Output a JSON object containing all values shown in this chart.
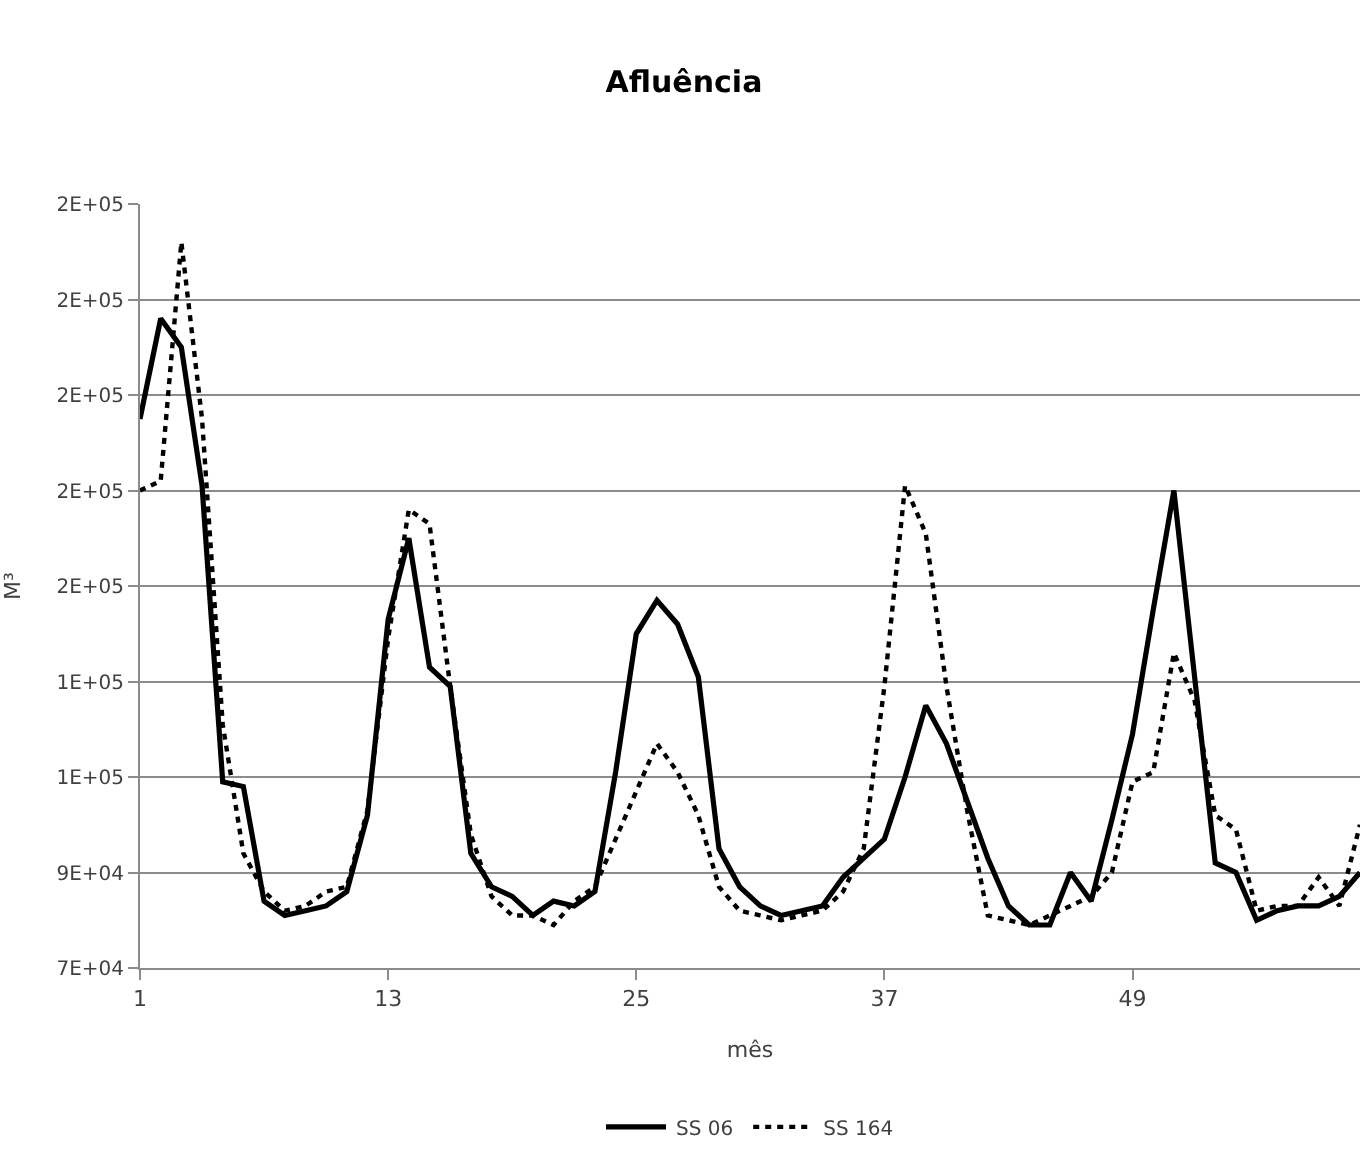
{
  "chart_data": {
    "type": "line",
    "title": "Afluência",
    "xlabel": "mês",
    "ylabel": "M³",
    "x": [
      1,
      2,
      3,
      4,
      5,
      6,
      7,
      8,
      9,
      10,
      11,
      12,
      13,
      14,
      15,
      16,
      17,
      18,
      19,
      20,
      21,
      22,
      23,
      24,
      25,
      26,
      27,
      28,
      29,
      30,
      31,
      32,
      33,
      34,
      35,
      36,
      37,
      38,
      39,
      40,
      41,
      42,
      43,
      44,
      45,
      46,
      47,
      48,
      49,
      50,
      51,
      52,
      53,
      54,
      55,
      56,
      57,
      58,
      59,
      60
    ],
    "series": [
      {
        "name": "SS 06",
        "color": "#000000",
        "line_style": "solid",
        "values": [
          185000,
          206000,
          200000,
          171000,
          109000,
          108000,
          84000,
          81000,
          82000,
          83000,
          86000,
          102000,
          143000,
          160000,
          133000,
          129000,
          94000,
          87000,
          85000,
          81000,
          84000,
          83000,
          86000,
          111000,
          140000,
          147000,
          142000,
          131000,
          95000,
          87000,
          83000,
          81000,
          82000,
          83000,
          89000,
          93000,
          97000,
          110000,
          125000,
          117000,
          105000,
          93000,
          83000,
          79000,
          79000,
          90000,
          84000,
          101000,
          119000,
          145000,
          170000,
          131000,
          92000,
          90000,
          80000,
          82000,
          83000,
          83000,
          85000,
          90000
        ]
      },
      {
        "name": "SS 164",
        "color": "#000000",
        "line_style": "dotted",
        "values": [
          170000,
          172000,
          222000,
          185000,
          121000,
          94000,
          86000,
          82000,
          83000,
          86000,
          87000,
          103000,
          139000,
          166000,
          163000,
          129000,
          98000,
          85000,
          81000,
          81000,
          79000,
          84000,
          87000,
          97000,
          107000,
          117000,
          111000,
          102000,
          87000,
          82000,
          81000,
          80000,
          81000,
          82000,
          86000,
          95000,
          129000,
          171000,
          161000,
          129000,
          103000,
          81000,
          80000,
          79000,
          81000,
          83000,
          85000,
          90000,
          109000,
          111000,
          136000,
          126000,
          102000,
          99000,
          82000,
          83000,
          83000,
          89000,
          83000,
          100000
        ]
      }
    ],
    "xlim": [
      1,
      60
    ],
    "xticks": [
      1,
      13,
      25,
      37,
      49
    ],
    "ylim": [
      70000,
      230000
    ],
    "yticks": [
      {
        "value": 70000,
        "label": "7E+04"
      },
      {
        "value": 90000,
        "label": "9E+04"
      },
      {
        "value": 110000,
        "label": "1E+05"
      },
      {
        "value": 130000,
        "label": "1E+05"
      },
      {
        "value": 150000,
        "label": "2E+05"
      },
      {
        "value": 170000,
        "label": "2E+05"
      },
      {
        "value": 190000,
        "label": "2E+05"
      },
      {
        "value": 210000,
        "label": "2E+05"
      },
      {
        "value": 230000,
        "label": "2E+05"
      }
    ],
    "grid": "y",
    "legend": "bottom",
    "marker": "none"
  }
}
